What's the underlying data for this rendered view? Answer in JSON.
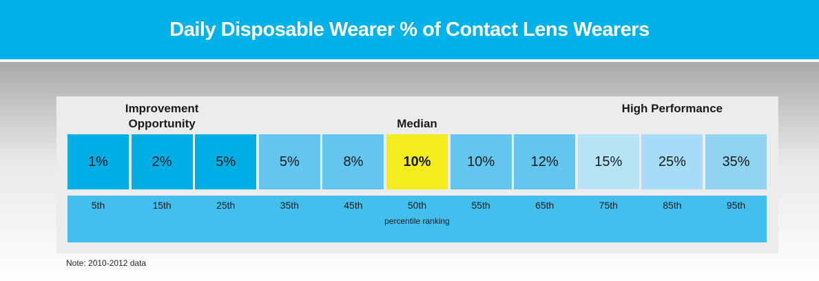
{
  "header": {
    "title": "Daily Disposable Wearer % of Contact Lens Wearers"
  },
  "group_labels": [
    {
      "text": "Improvement Opportunity",
      "center_cell": 1
    },
    {
      "text": "Median",
      "center_cell": 5
    },
    {
      "text": "High Performance",
      "center_cell": 9
    }
  ],
  "cells": [
    {
      "value": "1%",
      "percentile": "5th",
      "color": "#00aee6"
    },
    {
      "value": "2%",
      "percentile": "15th",
      "color": "#00aee6"
    },
    {
      "value": "5%",
      "percentile": "25th",
      "color": "#00aee6"
    },
    {
      "value": "5%",
      "percentile": "35th",
      "color": "#62c6ef"
    },
    {
      "value": "8%",
      "percentile": "45th",
      "color": "#62c6ef"
    },
    {
      "value": "10%",
      "percentile": "50th",
      "color": "#f5ec1c",
      "highlight": true
    },
    {
      "value": "10%",
      "percentile": "55th",
      "color": "#62c6ef"
    },
    {
      "value": "12%",
      "percentile": "65th",
      "color": "#62c6ef"
    },
    {
      "value": "15%",
      "percentile": "75th",
      "color": "#b7e3f7"
    },
    {
      "value": "25%",
      "percentile": "85th",
      "color": "#a6dcf5"
    },
    {
      "value": "35%",
      "percentile": "95th",
      "color": "#90d4f2"
    }
  ],
  "ranking_label": "percentile ranking",
  "note": "Note: 2010-2012 data"
}
